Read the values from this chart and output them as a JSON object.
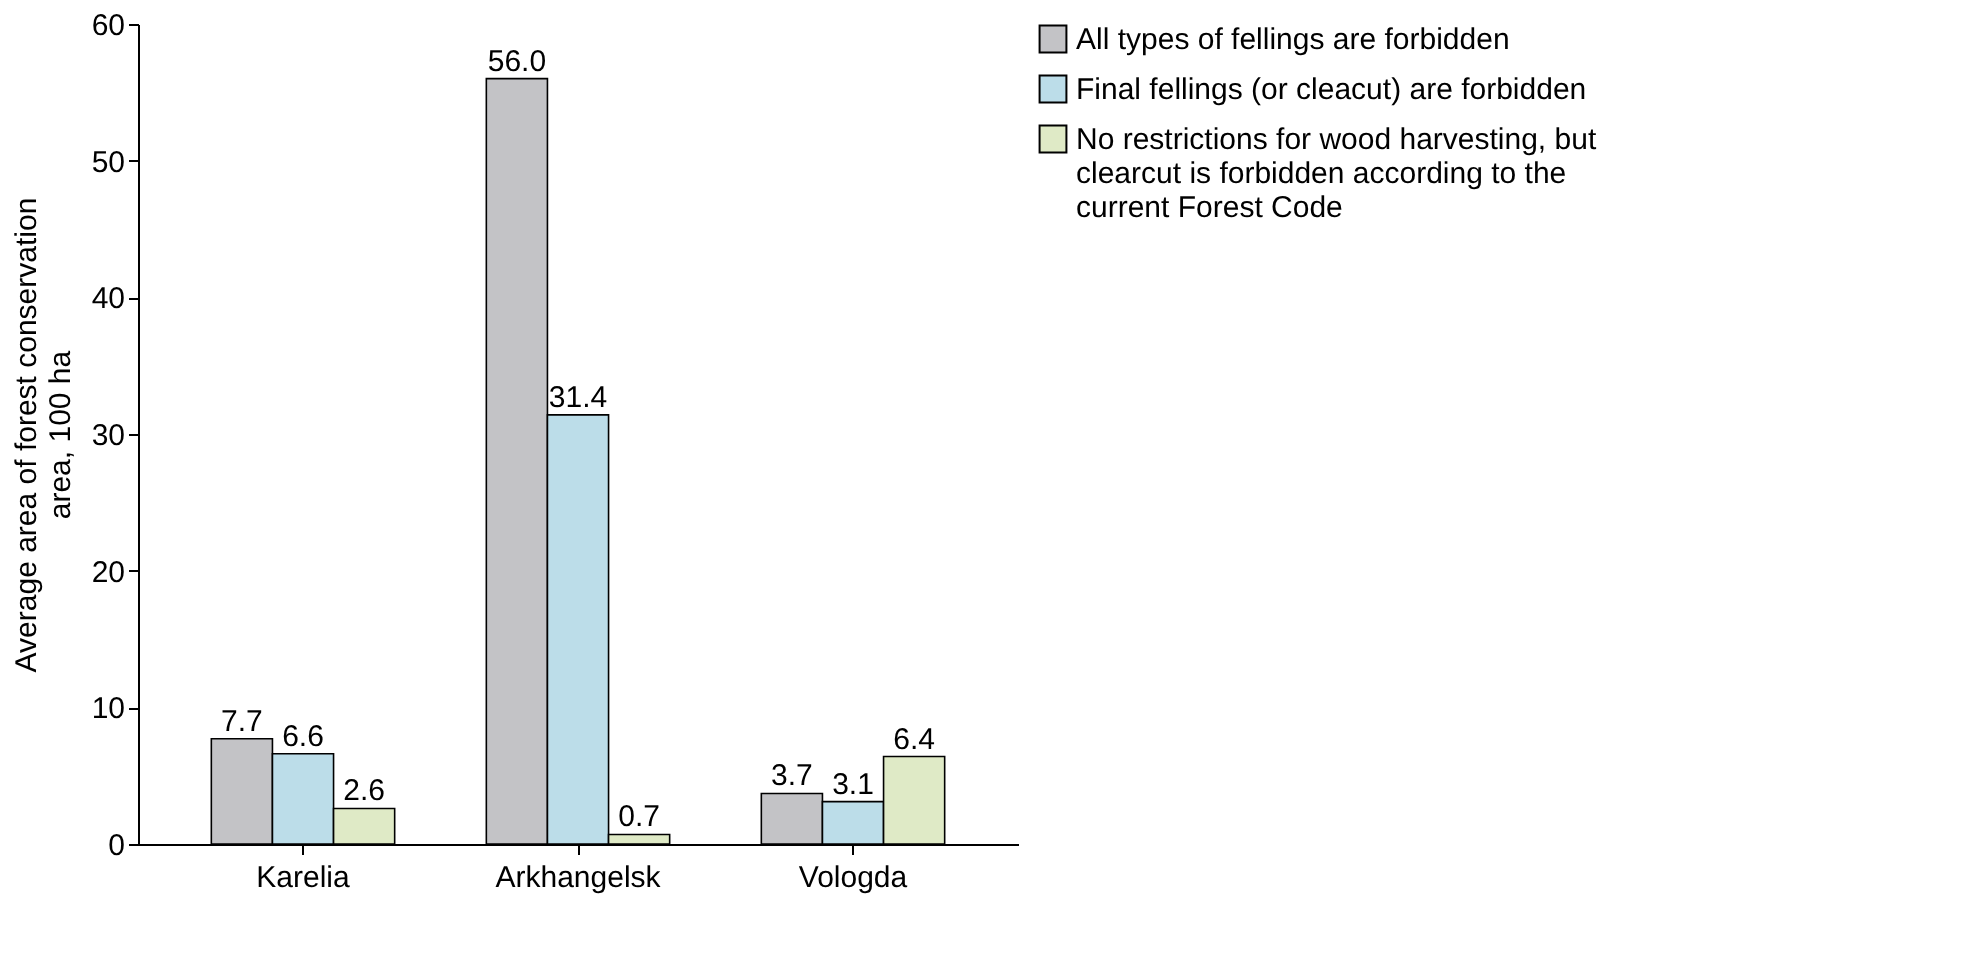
{
  "chart_data": {
    "type": "bar",
    "ylabel": "Average area of forest conservation area, 100 ha",
    "categories": [
      "Karelia",
      "Arkhangelsk",
      "Vologda"
    ],
    "series": [
      {
        "name": "All types of fellings are forbidden",
        "color": "#c3c3c6",
        "values": [
          7.7,
          56.0,
          3.7
        ],
        "value_labels": [
          "7.7",
          "56.0",
          "3.7"
        ]
      },
      {
        "name": "Final fellings (or cleacut) are forbidden",
        "color": "#bcdde9",
        "values": [
          6.6,
          31.4,
          3.1
        ],
        "value_labels": [
          "6.6",
          "31.4",
          "3.1"
        ]
      },
      {
        "name": "No restrictions for wood harvesting, but clearcut is forbidden according to the current Forest Code",
        "color": "#dfeac6",
        "values": [
          2.6,
          0.7,
          6.4
        ],
        "value_labels": [
          "2.6",
          "0.7",
          "6.4"
        ]
      }
    ],
    "ylim": [
      0,
      60
    ],
    "yticks": [
      0,
      10,
      20,
      30,
      40,
      50,
      60
    ],
    "grid": false,
    "legend": "right"
  }
}
